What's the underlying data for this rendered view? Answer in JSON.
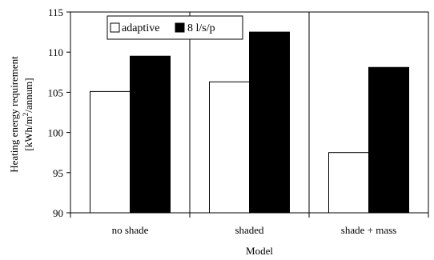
{
  "chart_data": {
    "type": "bar",
    "xlabel": "Model",
    "ylabel_line1": "Heating energy requirement",
    "ylabel_line2_prefix": "[kWh/m",
    "ylabel_line2_sup": "2",
    "ylabel_line2_suffix": "/annum]",
    "ylim": [
      90,
      115
    ],
    "yticks": [
      90,
      95,
      100,
      105,
      110,
      115
    ],
    "categories": [
      "no shade",
      "shaded",
      "shade + mass"
    ],
    "series": [
      {
        "name": "adaptive",
        "values": [
          105.1,
          106.3,
          97.5
        ],
        "color": "#ffffff"
      },
      {
        "name": "8 l/s/p",
        "values": [
          109.5,
          112.5,
          108.1
        ],
        "color": "#000000"
      }
    ],
    "legend_position": "top-left",
    "category_separators": true
  }
}
